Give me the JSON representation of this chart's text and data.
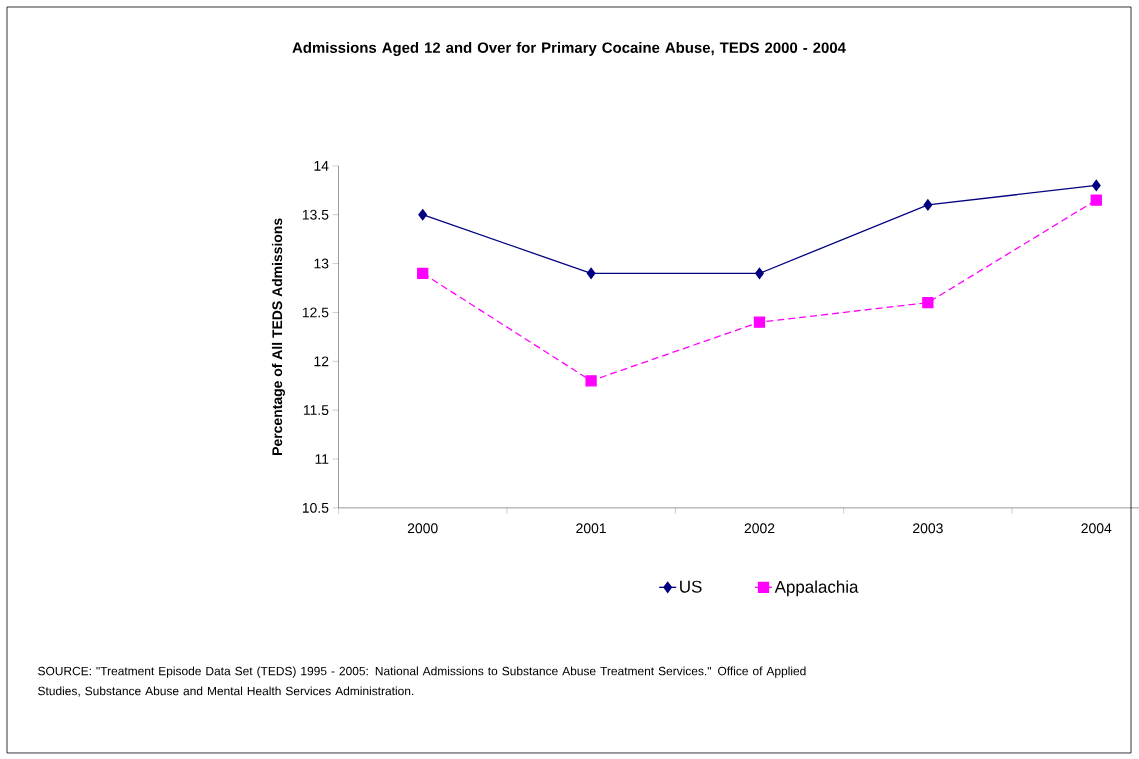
{
  "chart_data": {
    "type": "line",
    "title": "Admissions Aged 12 and Over for Primary Cocaine Abuse, TEDS 2000 - 2004",
    "ylabel": "Percentage of All TEDS Admissions",
    "categories": [
      "2000",
      "2001",
      "2002",
      "2003",
      "2004"
    ],
    "series": [
      {
        "name": "US",
        "color": "#000080",
        "values": [
          13.5,
          12.9,
          12.9,
          13.6,
          13.8
        ],
        "marker": "diamond",
        "line_style": "solid"
      },
      {
        "name": "Appalachia",
        "color": "#ff00ff",
        "values": [
          12.9,
          11.8,
          12.4,
          12.6,
          13.65
        ],
        "marker": "square",
        "line_style": "dashed"
      }
    ],
    "ylim": [
      10.5,
      14
    ],
    "yticks": [
      10.5,
      11,
      11.5,
      12,
      12.5,
      13,
      13.5,
      14
    ],
    "grid": false,
    "legend": "bottom",
    "annotations": [
      "SOURCE: \"Treatment Episode Data Set (TEDS) 1995 - 2005: National Admissions to Substance Abuse Treatment Services.\" Office of Applied Studies, Substance Abuse and Mental Health Services Administration."
    ]
  }
}
